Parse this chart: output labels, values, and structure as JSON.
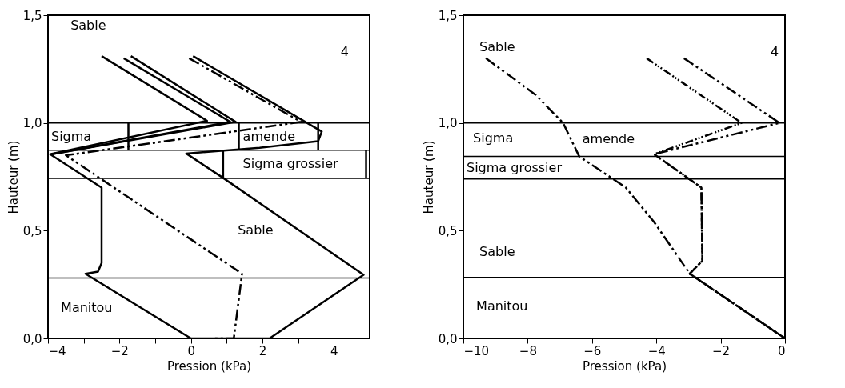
{
  "chart_data": [
    {
      "type": "line",
      "xlabel": "Pression (kPa)",
      "ylabel": "Hauteur (m)",
      "xlim": [
        -4,
        5
      ],
      "ylim": [
        0,
        1.5
      ],
      "xticks": [
        -4,
        {
          "value": -3,
          "label": null
        },
        -2,
        {
          "value": -1,
          "label": null
        },
        0,
        {
          "value": 1,
          "label": null
        },
        2,
        {
          "value": 3,
          "label": null
        },
        4,
        {
          "value": 5,
          "label": null
        }
      ],
      "yticks": [
        {
          "value": 0,
          "label": "0,0"
        },
        {
          "value": 0.5,
          "label": "0,5"
        },
        {
          "value": 1,
          "label": "1,0"
        },
        {
          "value": 1.5,
          "label": "1,5"
        }
      ],
      "grid": false,
      "marker": "none",
      "series": [
        {
          "color": "#000000",
          "line_style": "solid",
          "x": [
            -2.5,
            0.45,
            -3.94,
            -2.5,
            -2.5,
            -2.6,
            -2.95,
            0
          ],
          "values": [
            1.31,
            1.01,
            0.855,
            0.7,
            0.35,
            0.31,
            0.3,
            0
          ]
        },
        {
          "color": "#000000",
          "line_style": "solid",
          "x": [
            -1.88,
            1.1,
            -3.9
          ],
          "values": [
            1.3,
            1.005,
            0.855
          ]
        },
        {
          "color": "#000000",
          "line_style": "solid",
          "x": [
            -1.68,
            1.25,
            -3.9
          ],
          "values": [
            1.31,
            1.005,
            0.855
          ]
        },
        {
          "color": "#000000",
          "line_style": "dashed",
          "x": [
            -0.05,
            3.08,
            -3.5,
            1.43,
            1.2,
            0.65
          ],
          "values": [
            1.3,
            1.005,
            0.85,
            0.3,
            0,
            0
          ]
        },
        {
          "color": "#000000",
          "line_style": "solid",
          "x": [
            0.06,
            3.66,
            3.56,
            1.92,
            -0.13,
            0.9,
            4.83,
            2.2,
            0
          ],
          "values": [
            1.31,
            0.96,
            0.915,
            0.885,
            0.858,
            0.745,
            0.295,
            0,
            0
          ]
        },
        {
          "color": "#000000",
          "line_style": "solid",
          "x": [
            -1.75,
            -1.75
          ],
          "values": [
            1.0,
            0.873
          ]
        },
        {
          "color": "#000000",
          "line_style": "solid",
          "x": [
            1.34,
            1.34
          ],
          "values": [
            1.0,
            0.873
          ]
        },
        {
          "color": "#000000",
          "line_style": "solid",
          "x": [
            3.56,
            3.56
          ],
          "values": [
            1.0,
            0.873
          ]
        },
        {
          "color": "#000000",
          "line_style": "solid",
          "x": [
            0.9,
            0.9
          ],
          "values": [
            0.873,
            0.743
          ]
        },
        {
          "color": "#000000",
          "line_style": "solid",
          "x": [
            4.9,
            4.9
          ],
          "values": [
            0.873,
            0.743
          ]
        }
      ],
      "ref_lines": [
        {
          "axis": "y",
          "value": 1.0
        },
        {
          "axis": "y",
          "value": 0.873
        },
        {
          "axis": "y",
          "value": 0.743
        },
        {
          "axis": "y",
          "value": 0.28
        }
      ],
      "annotations": [
        "Sable",
        "4",
        "Sigma",
        "amende",
        "Sigma grossier",
        "Sable",
        "Manitou"
      ]
    },
    {
      "type": "line",
      "xlabel": "Pression (kPa)",
      "ylabel": "Hauteur (m)",
      "xlim": [
        -10,
        0
      ],
      "ylim": [
        0,
        1.5
      ],
      "xticks": [
        -10,
        -8,
        -6,
        -4,
        -2,
        0
      ],
      "yticks": [
        {
          "value": 0,
          "label": "0,0"
        },
        {
          "value": 0.5,
          "label": "0,5"
        },
        {
          "value": 1,
          "label": "1,0"
        },
        {
          "value": 1.5,
          "label": "1,5"
        }
      ],
      "grid": false,
      "marker": "none",
      "series": [
        {
          "color": "#000000",
          "line_style": "dashed",
          "x": [
            -9.3,
            -7.75,
            -6.9,
            -6.4,
            -4.95,
            -4.07,
            -2.96,
            0
          ],
          "values": [
            1.3,
            1.13,
            1.0,
            0.845,
            0.7,
            0.54,
            0.3,
            0
          ]
        },
        {
          "color": "#000000",
          "line_style": "dotted",
          "x": [
            -4.3,
            -1.35,
            -4.07,
            -2.6,
            -2.57,
            -2.9,
            -2.96,
            0
          ],
          "values": [
            1.3,
            1.0,
            0.855,
            0.7,
            0.36,
            0.31,
            0.3,
            0
          ]
        },
        {
          "color": "#000000",
          "line_style": "dashed",
          "x": [
            -3.14,
            -0.17,
            -4.07,
            -2.6,
            -2.57,
            -2.9,
            -2.96,
            0
          ],
          "values": [
            1.3,
            1.0,
            0.855,
            0.7,
            0.36,
            0.31,
            0.3,
            0
          ]
        }
      ],
      "ref_lines": [
        {
          "axis": "y",
          "value": 1.0
        },
        {
          "axis": "y",
          "value": 0.845
        },
        {
          "axis": "y",
          "value": 0.74
        },
        {
          "axis": "y",
          "value": 0.283
        }
      ],
      "annotations": [
        "Sable",
        "4",
        "Sigma",
        "amende",
        "Sigma grossier",
        "Sable",
        "Manitou"
      ]
    }
  ]
}
